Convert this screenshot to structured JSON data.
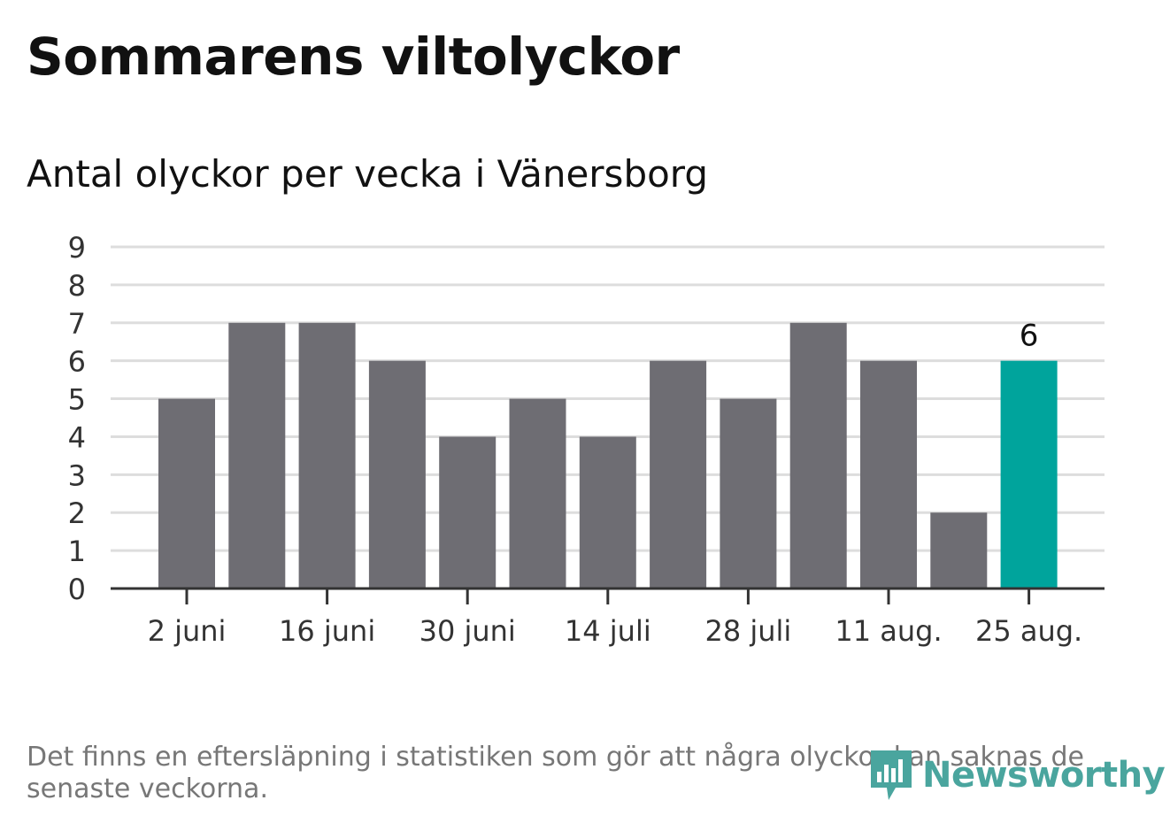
{
  "title": "Sommarens viltolyckor",
  "subtitle": "Antal olyckor per vecka i Vänersborg",
  "footnote": "Det finns en eftersläpning i statistiken som gör att några olyckor kan saknas de senaste veckorna.",
  "brand": {
    "name": "Newsworthy",
    "icon": "newsworthy-logo-icon",
    "color": "#4aa59e"
  },
  "colors": {
    "bar": "#6e6d73",
    "highlight": "#00a49c",
    "grid": "#dddddd",
    "axis": "#333333"
  },
  "chart_data": {
    "type": "bar",
    "title": "Antal olyckor per vecka i Vänersborg",
    "xlabel": "",
    "ylabel": "",
    "ylim": [
      0,
      9
    ],
    "yticks": [
      0,
      1,
      2,
      3,
      4,
      5,
      6,
      7,
      8,
      9
    ],
    "grid": true,
    "x_tick_labels": [
      "2 juni",
      "16 juni",
      "30 juni",
      "14 juli",
      "28 juli",
      "11 aug.",
      "25 aug."
    ],
    "x_tick_every": 2,
    "values": [
      5,
      7,
      7,
      6,
      4,
      5,
      4,
      6,
      5,
      7,
      6,
      2,
      6
    ],
    "highlight_index": 12,
    "highlight_label": "6"
  }
}
